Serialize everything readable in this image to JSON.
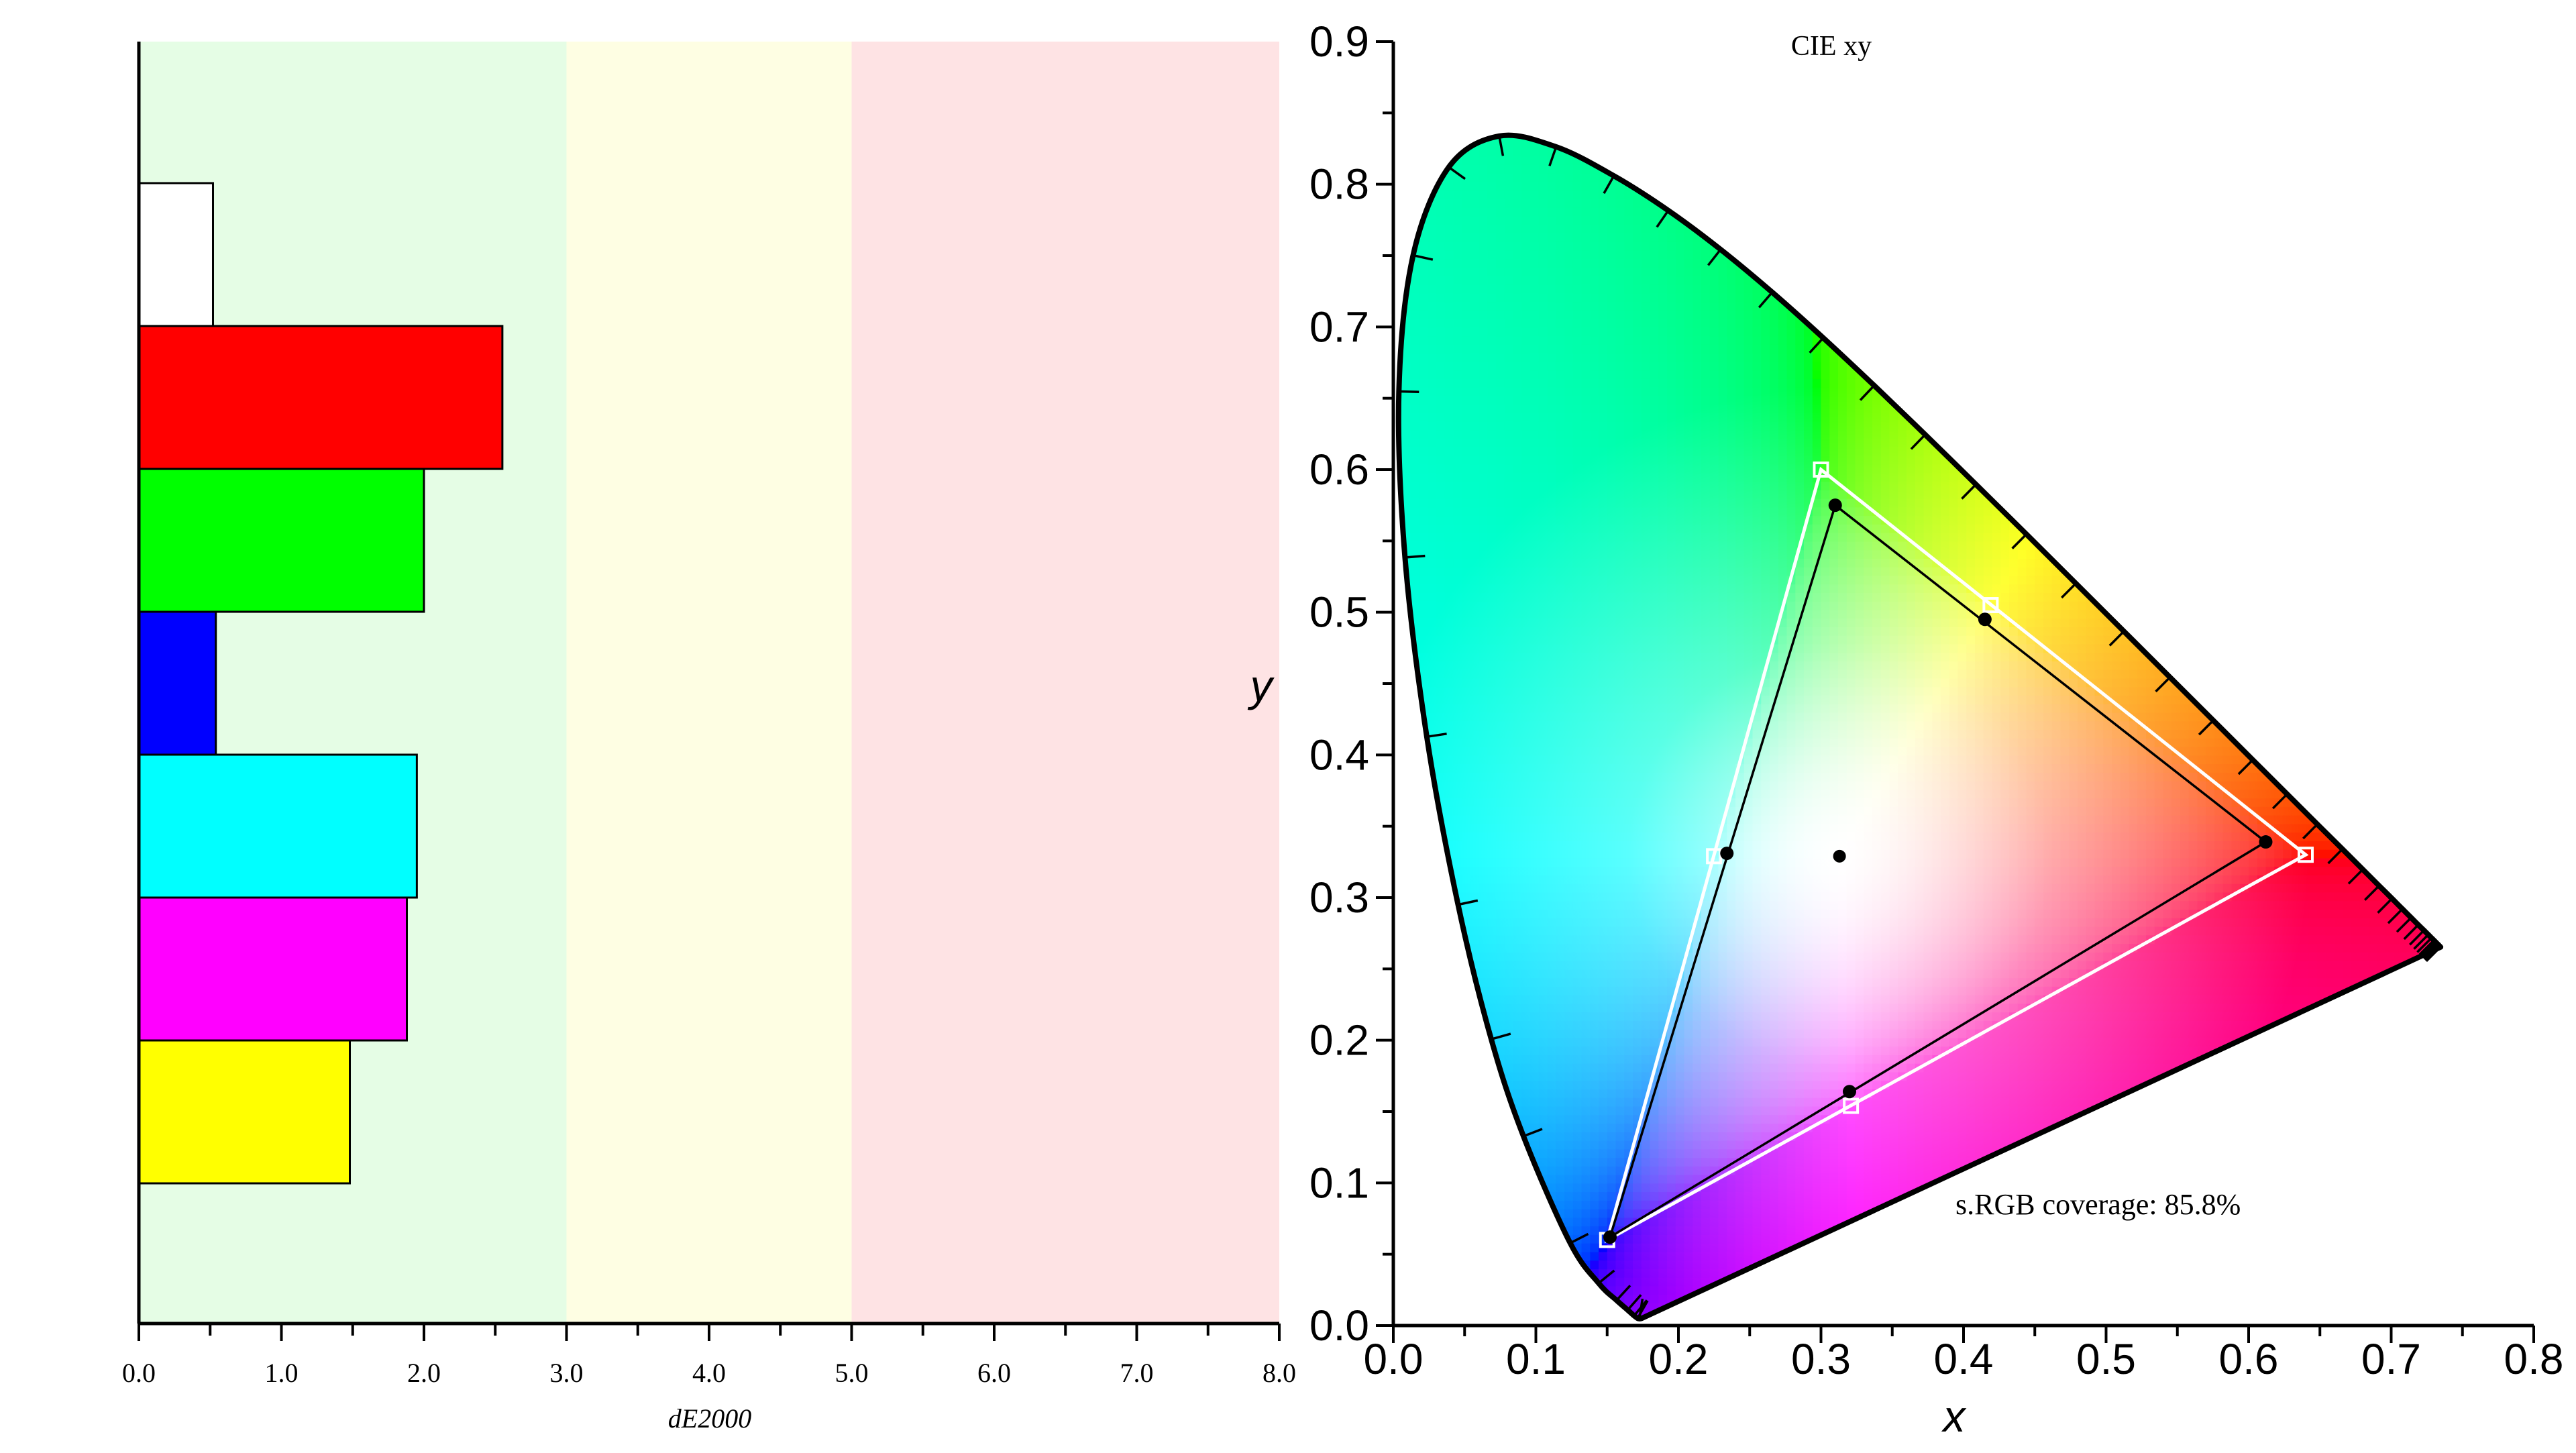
{
  "chart_data": [
    {
      "type": "bar",
      "orientation": "horizontal",
      "xlabel": "dE2000",
      "xlim": [
        0,
        8
      ],
      "xticks": [
        "0.0",
        "1.0",
        "2.0",
        "3.0",
        "4.0",
        "5.0",
        "6.0",
        "7.0",
        "8.0"
      ],
      "zones": [
        {
          "from": 0,
          "to": 3,
          "color": "#e5fde5"
        },
        {
          "from": 3,
          "to": 5,
          "color": "#fefee3"
        },
        {
          "from": 5,
          "to": 8,
          "color": "#fee3e4"
        }
      ],
      "bars": [
        {
          "color": "#ffffff",
          "value": 0.52
        },
        {
          "color": "#ff0000",
          "value": 2.55
        },
        {
          "color": "#00ff00",
          "value": 2.0
        },
        {
          "color": "#0000ff",
          "value": 0.54
        },
        {
          "color": "#00ffff",
          "value": 1.95
        },
        {
          "color": "#ff00ff",
          "value": 1.88
        },
        {
          "color": "#ffff00",
          "value": 1.48
        }
      ]
    },
    {
      "type": "scatter",
      "title": "CIE xy",
      "xlabel": "x",
      "ylabel": "y",
      "xlim": [
        0,
        0.8
      ],
      "ylim": [
        0,
        0.9
      ],
      "xticks": [
        "0.0",
        "0.1",
        "0.2",
        "0.3",
        "0.4",
        "0.5",
        "0.6",
        "0.7",
        "0.8"
      ],
      "yticks": [
        "0.0",
        "0.1",
        "0.2",
        "0.3",
        "0.4",
        "0.5",
        "0.6",
        "0.7",
        "0.8",
        "0.9"
      ],
      "annotation": "s.RGB coverage: 85.8%",
      "locus": [
        [
          0.1741,
          0.005
        ],
        [
          0.1738,
          0.0049
        ],
        [
          0.1733,
          0.0048
        ],
        [
          0.1726,
          0.0048
        ],
        [
          0.1714,
          0.0051
        ],
        [
          0.1689,
          0.0069
        ],
        [
          0.1644,
          0.0109
        ],
        [
          0.1566,
          0.0177
        ],
        [
          0.144,
          0.0297
        ],
        [
          0.1241,
          0.0578
        ],
        [
          0.0913,
          0.1327
        ],
        [
          0.0687,
          0.2007
        ],
        [
          0.0454,
          0.295
        ],
        [
          0.0235,
          0.4127
        ],
        [
          0.0082,
          0.5384
        ],
        [
          0.0039,
          0.6548
        ],
        [
          0.0139,
          0.7502
        ],
        [
          0.0389,
          0.812
        ],
        [
          0.0743,
          0.8338
        ],
        [
          0.1142,
          0.8262
        ],
        [
          0.1547,
          0.8059
        ],
        [
          0.1929,
          0.7816
        ],
        [
          0.2296,
          0.7543
        ],
        [
          0.2658,
          0.7243
        ],
        [
          0.3016,
          0.6923
        ],
        [
          0.3373,
          0.6589
        ],
        [
          0.3731,
          0.6245
        ],
        [
          0.4087,
          0.5896
        ],
        [
          0.4441,
          0.5547
        ],
        [
          0.4788,
          0.5202
        ],
        [
          0.5125,
          0.4866
        ],
        [
          0.5448,
          0.4544
        ],
        [
          0.5752,
          0.4242
        ],
        [
          0.6029,
          0.3965
        ],
        [
          0.627,
          0.3725
        ],
        [
          0.6482,
          0.3514
        ],
        [
          0.6658,
          0.334
        ],
        [
          0.6801,
          0.3197
        ],
        [
          0.6915,
          0.3083
        ],
        [
          0.7006,
          0.2993
        ],
        [
          0.7079,
          0.292
        ],
        [
          0.714,
          0.2859
        ],
        [
          0.719,
          0.2809
        ],
        [
          0.723,
          0.277
        ],
        [
          0.726,
          0.274
        ],
        [
          0.7283,
          0.2717
        ],
        [
          0.73,
          0.27
        ],
        [
          0.7311,
          0.2689
        ],
        [
          0.732,
          0.268
        ],
        [
          0.7327,
          0.2673
        ],
        [
          0.7334,
          0.2666
        ],
        [
          0.734,
          0.266
        ],
        [
          0.7344,
          0.2656
        ],
        [
          0.7346,
          0.2654
        ],
        [
          0.7347,
          0.2653
        ]
      ],
      "reference_gamut": {
        "red": [
          0.64,
          0.33
        ],
        "green": [
          0.3,
          0.6
        ],
        "blue": [
          0.15,
          0.06
        ],
        "cyan": [
          0.225,
          0.329
        ],
        "magenta": [
          0.321,
          0.154
        ],
        "yellow": [
          0.419,
          0.505
        ]
      },
      "measured_gamut": {
        "red": [
          0.612,
          0.339
        ],
        "green": [
          0.31,
          0.575
        ],
        "blue": [
          0.152,
          0.062
        ],
        "cyan": [
          0.234,
          0.331
        ],
        "magenta": [
          0.32,
          0.164
        ],
        "yellow": [
          0.415,
          0.495
        ],
        "white": [
          0.313,
          0.329
        ]
      }
    }
  ]
}
